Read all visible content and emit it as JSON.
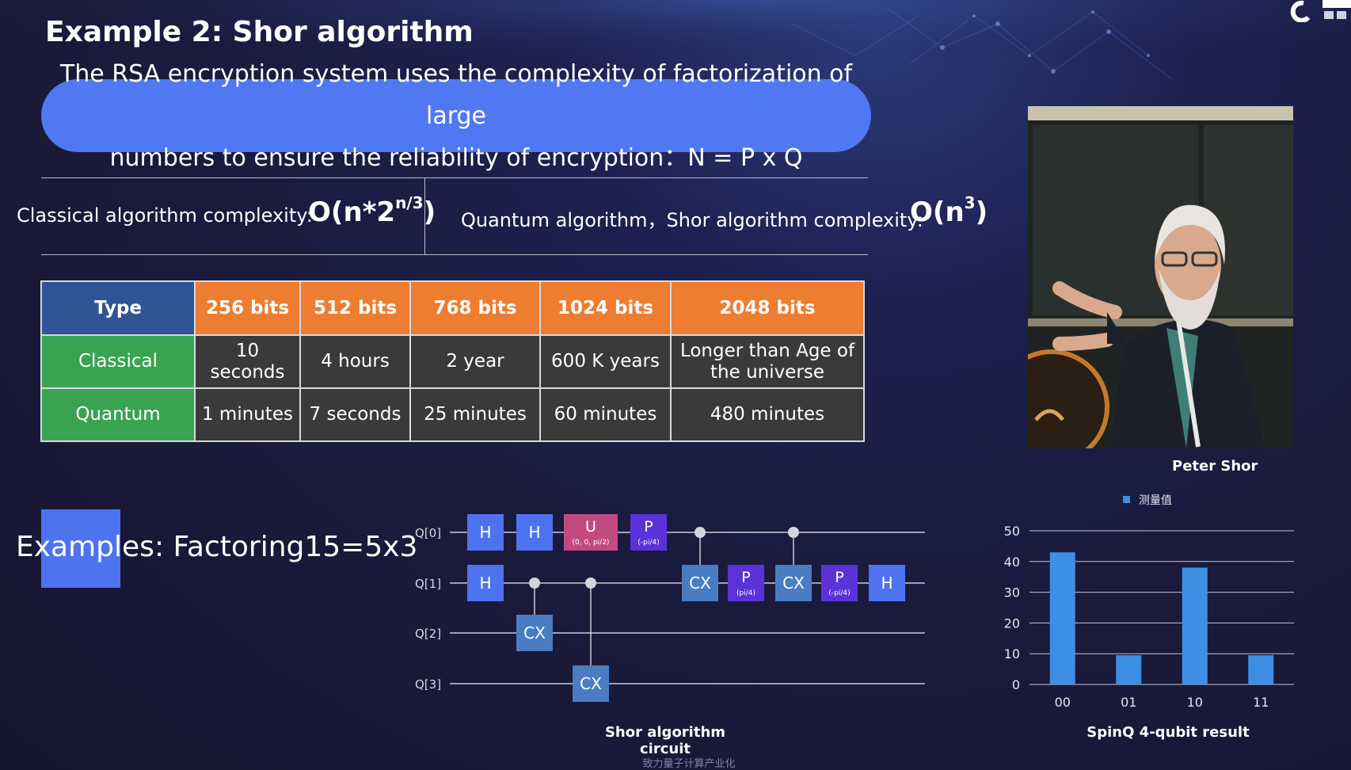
{
  "slide": {
    "title": "Example 2: Shor algorithm",
    "rsa_line1": "The RSA encryption system uses the complexity of factorization of large",
    "rsa_line2": "numbers to ensure the reliability of encryption：N = P x Q",
    "classical_label": "Classical algorithm complexity:",
    "classical_value_base": "O(n*2",
    "classical_value_exp": "n/3",
    "classical_value_end": ")",
    "quantum_label": "Quantum algorithm，Shor algorithm complexity:",
    "quantum_value_base": "O(n",
    "quantum_value_exp": "3",
    "quantum_value_end": ")",
    "examples_text": "Examples: Factoring15=5x3",
    "circuit_caption": "Shor algorithm circuit",
    "photo_caption": "Peter Shor",
    "chart_caption": "SpinQ  4-qubit result",
    "footer_text": "致力量子计算产业化"
  },
  "table": {
    "headers": [
      "Type",
      "256 bits",
      "512 bits",
      "768 bits",
      "1024 bits",
      "2048 bits"
    ],
    "rows": [
      {
        "label": "Classical",
        "cells": [
          "10 seconds",
          "4 hours",
          "2 year",
          "600 K years",
          "Longer than Age of the universe"
        ]
      },
      {
        "label": "Quantum",
        "cells": [
          "1 minutes",
          "7 seconds",
          "25 minutes",
          "60 minutes",
          "480 minutes"
        ]
      }
    ]
  },
  "circuit": {
    "qubits": [
      "Q[0]",
      "Q[1]",
      "Q[2]",
      "Q[3]"
    ],
    "gates": [
      {
        "name": "H",
        "sub": "",
        "qubit": 0,
        "col": 0
      },
      {
        "name": "H",
        "sub": "",
        "qubit": 0,
        "col": 1
      },
      {
        "name": "U",
        "sub": "(0,  0,  pi/2)",
        "qubit": 0,
        "col": 2
      },
      {
        "name": "P",
        "sub": "(-pi/4)",
        "qubit": 0,
        "col": 3
      },
      {
        "name": "H",
        "sub": "",
        "qubit": 1,
        "col": 0
      },
      {
        "name": "CX",
        "sub": "",
        "qubit": 2,
        "col": 1,
        "control": 1
      },
      {
        "name": "CX",
        "sub": "",
        "qubit": 3,
        "col": 2,
        "control": 1
      },
      {
        "name": "CX",
        "sub": "",
        "qubit": 1,
        "col": 4,
        "control": 0
      },
      {
        "name": "P",
        "sub": "(pi/4)",
        "qubit": 1,
        "col": 5
      },
      {
        "name": "CX",
        "sub": "",
        "qubit": 1,
        "col": 6,
        "control": 0
      },
      {
        "name": "P",
        "sub": "(-pi/4)",
        "qubit": 1,
        "col": 7
      },
      {
        "name": "H",
        "sub": "",
        "qubit": 1,
        "col": 8
      }
    ]
  },
  "colors": {
    "rsa_bubble": "#5078f2",
    "table_type_header": "#2f5597",
    "table_bits_header": "#ed7d31",
    "table_row_header": "#3aa351",
    "table_cell": "#3a3a3a",
    "gate_h": "#4f72ef",
    "gate_cx": "#4a7cc4",
    "gate_u": "#c24a82",
    "gate_p": "#5a32d8",
    "bar": "#3d8fe6"
  },
  "chart_data": {
    "type": "bar",
    "categories": [
      "00",
      "01",
      "10",
      "11"
    ],
    "series": [
      {
        "name": "测量值",
        "values": [
          43,
          9.5,
          38,
          9.5
        ]
      }
    ],
    "ylim": [
      0,
      50
    ],
    "yticks": [
      0,
      10,
      20,
      30,
      40,
      50
    ],
    "grid": true,
    "legend_position": "top",
    "title": "",
    "xlabel": "",
    "ylabel": ""
  }
}
